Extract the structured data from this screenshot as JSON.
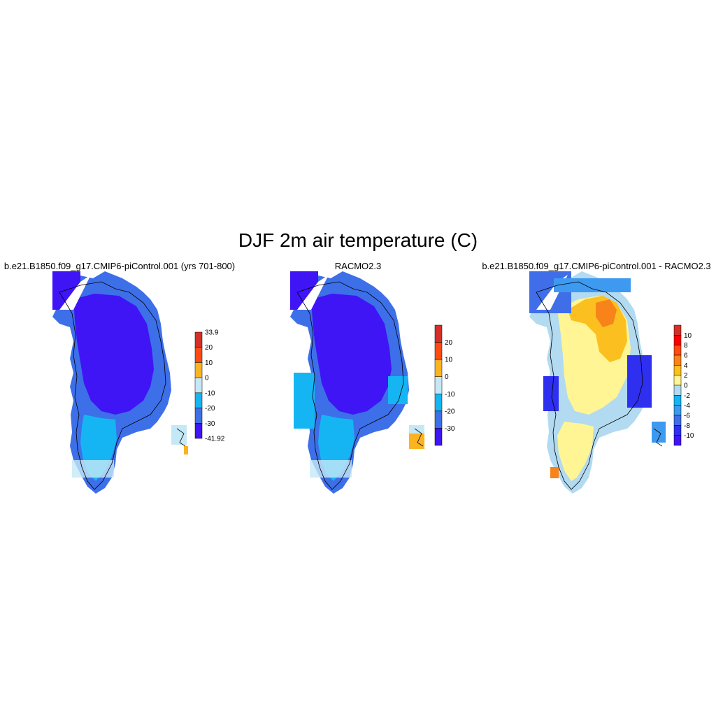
{
  "title": "DJF 2m air temperature (C)",
  "panels": [
    {
      "id": "model",
      "title": "b.e21.B1850.f09_g17.CMIP6-piControl.001 (yrs 701-800)",
      "colorbar": {
        "labels": [
          "33.9",
          "20",
          "10",
          "0",
          "-10",
          "-20",
          "-30",
          "-41.92"
        ],
        "colors": [
          "#d62f27",
          "#ff4a12",
          "#fbb31f",
          "#c5e8f6",
          "#15b5f3",
          "#3d6fe8",
          "#3f14f5"
        ]
      }
    },
    {
      "id": "obs",
      "title": "RACMO2.3",
      "colorbar": {
        "labels": [
          "20",
          "10",
          "0",
          "-10",
          "-20",
          "-30"
        ],
        "colors": [
          "#d62f27",
          "#ff4a12",
          "#fbb31f",
          "#c5e8f6",
          "#15b5f3",
          "#3d6fe8",
          "#3f14f5"
        ]
      }
    },
    {
      "id": "diff",
      "title": "b.e21.B1850.f09_g17.CMIP6-piControl.001 - RACMO2.3",
      "colorbar": {
        "labels": [
          "10",
          "8",
          "6",
          "4",
          "2",
          "0",
          "-2",
          "-4",
          "-6",
          "-8",
          "-10"
        ],
        "colors": [
          "#d62f27",
          "#ff0000",
          "#ff4a12",
          "#f7831a",
          "#fbbf1f",
          "#fff594",
          "#b2daf0",
          "#15b5f3",
          "#3d9af0",
          "#3f6ee8",
          "#2f2ff0",
          "#3f14f5"
        ]
      }
    }
  ]
}
